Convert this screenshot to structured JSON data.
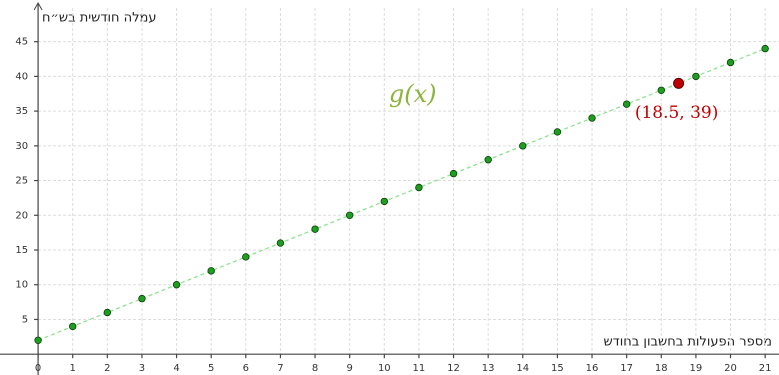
{
  "chart_data": {
    "type": "scatter",
    "xlabel": "מספר הפעולות בחשבון בחודש",
    "ylabel": "עמלה חודשית בש״ח",
    "series": [
      {
        "name": "g(x)",
        "color": "#1e9e1e",
        "line_color": "#8fe38f",
        "x": [
          0,
          1,
          2,
          3,
          4,
          5,
          6,
          7,
          8,
          9,
          10,
          11,
          12,
          13,
          14,
          15,
          16,
          17,
          18,
          19,
          20,
          21
        ],
        "values": [
          2,
          4,
          6,
          8,
          10,
          12,
          14,
          16,
          18,
          20,
          22,
          24,
          26,
          28,
          30,
          32,
          34,
          36,
          38,
          40,
          42,
          44
        ]
      }
    ],
    "highlight": {
      "x": 18.5,
      "y": 39,
      "label": "(18.5, 39)",
      "color": "#c00000"
    },
    "xlim": [
      -1.1,
      21.4
    ],
    "ylim": [
      -3,
      51
    ],
    "xticks": [
      0,
      1,
      2,
      3,
      4,
      5,
      6,
      7,
      8,
      9,
      10,
      11,
      12,
      13,
      14,
      15,
      16,
      17,
      18,
      19,
      20,
      21
    ],
    "yticks": [
      5,
      10,
      15,
      20,
      25,
      30,
      35,
      40,
      45
    ],
    "grid": true
  }
}
